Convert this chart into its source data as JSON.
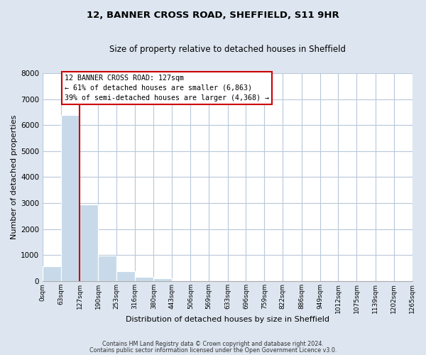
{
  "title": "12, BANNER CROSS ROAD, SHEFFIELD, S11 9HR",
  "subtitle": "Size of property relative to detached houses in Sheffield",
  "xlabel": "Distribution of detached houses by size in Sheffield",
  "ylabel": "Number of detached properties",
  "bar_values": [
    560,
    6400,
    2950,
    975,
    375,
    175,
    100,
    0,
    0,
    0,
    0,
    0,
    0,
    0,
    0,
    0,
    0,
    0,
    0,
    0
  ],
  "bin_edges": [
    0,
    63,
    127,
    190,
    253,
    316,
    380,
    443,
    506,
    569,
    633,
    696,
    759,
    822,
    886,
    949,
    1012,
    1075,
    1139,
    1202,
    1265
  ],
  "tick_labels": [
    "0sqm",
    "63sqm",
    "127sqm",
    "190sqm",
    "253sqm",
    "316sqm",
    "380sqm",
    "443sqm",
    "506sqm",
    "569sqm",
    "633sqm",
    "696sqm",
    "759sqm",
    "822sqm",
    "886sqm",
    "949sqm",
    "1012sqm",
    "1075sqm",
    "1139sqm",
    "1202sqm",
    "1265sqm"
  ],
  "bar_color": "#c8daea",
  "vline_x": 127,
  "vline_color": "#cc0000",
  "ylim": [
    0,
    8000
  ],
  "yticks": [
    0,
    1000,
    2000,
    3000,
    4000,
    5000,
    6000,
    7000,
    8000
  ],
  "annotation_line1": "12 BANNER CROSS ROAD: 127sqm",
  "annotation_line2": "← 61% of detached houses are smaller (6,863)",
  "annotation_line3": "39% of semi-detached houses are larger (4,368) →",
  "footer_line1": "Contains HM Land Registry data © Crown copyright and database right 2024.",
  "footer_line2": "Contains public sector information licensed under the Open Government Licence v3.0.",
  "bg_color": "#dde6f0",
  "plot_bg_color": "#dde6f0",
  "grid_color": "#b8c8da",
  "inner_plot_color": "#ffffff"
}
